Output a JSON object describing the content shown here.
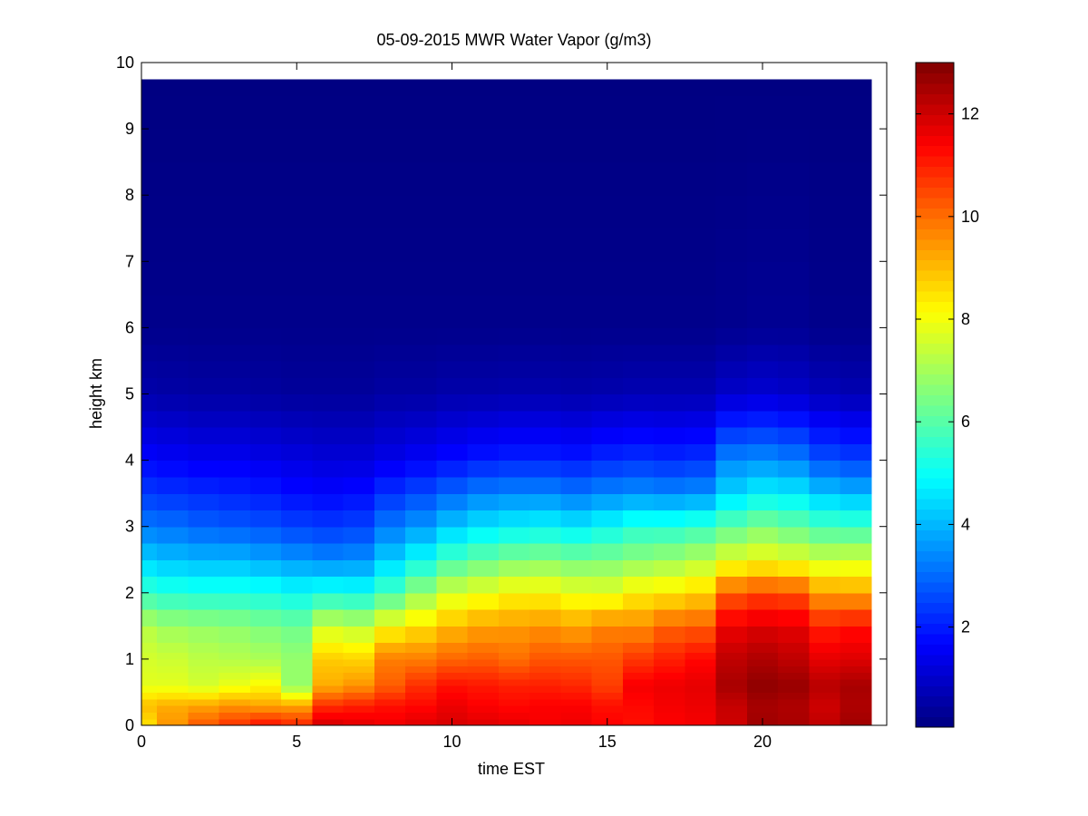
{
  "chart_data": {
    "type": "heatmap",
    "title": "05-09-2015 MWR Water Vapor (g/m3)",
    "xlabel": "time EST",
    "ylabel": "height km",
    "xlim": [
      0,
      24
    ],
    "ylim": [
      0,
      10
    ],
    "x_ticks": [
      0,
      5,
      10,
      15,
      20
    ],
    "y_ticks": [
      0,
      1,
      2,
      3,
      4,
      5,
      6,
      7,
      8,
      9,
      10
    ],
    "colorbar": {
      "colormap": "jet",
      "range": [
        0.05,
        13
      ],
      "ticks": [
        2,
        4,
        6,
        8,
        10,
        12
      ]
    },
    "x_values": [
      0,
      1,
      2,
      3,
      4,
      5,
      6,
      7,
      8,
      9,
      10,
      11,
      12,
      13,
      14,
      15,
      16,
      17,
      18,
      19,
      20,
      21,
      22,
      23
    ],
    "height_levels_km": [
      0,
      0.1,
      0.2,
      0.3,
      0.4,
      0.5,
      0.6,
      0.7,
      0.8,
      0.9,
      1.0,
      1.1,
      1.25,
      1.5,
      1.75,
      2.0,
      2.25,
      2.5,
      2.75,
      3.0,
      3.25,
      3.5,
      3.75,
      4.0,
      4.25,
      4.5,
      4.75,
      5.0,
      5.25,
      5.5,
      5.75,
      6.0,
      6.5,
      7.0,
      7.5,
      8.0,
      8.5,
      9.0,
      9.5
    ],
    "y_max_km": 9.75,
    "profile_heights_km": [
      0,
      0.3,
      0.6,
      1.0,
      1.5,
      2.0,
      2.5,
      3.0,
      3.5,
      4.0,
      5.0,
      6.0,
      9.75
    ],
    "profiles_g_m3": [
      [
        8.5,
        9.0,
        7.8,
        7.6,
        7.2,
        5.6,
        4.3,
        3.2,
        2.4,
        1.7,
        0.6,
        0.2,
        0.08
      ],
      [
        9.5,
        9.2,
        7.8,
        7.5,
        6.9,
        5.4,
        4.1,
        3.1,
        2.3,
        1.6,
        0.55,
        0.2,
        0.08
      ],
      [
        10.3,
        9.3,
        7.6,
        7.3,
        6.8,
        5.3,
        4.0,
        2.9,
        2.2,
        1.5,
        0.5,
        0.2,
        0.08
      ],
      [
        10.8,
        9.5,
        7.9,
        7.2,
        6.7,
        5.3,
        4.0,
        2.8,
        2.1,
        1.5,
        0.5,
        0.2,
        0.08
      ],
      [
        11.3,
        9.3,
        8.2,
        7.1,
        6.5,
        5.2,
        3.8,
        2.7,
        2.0,
        1.4,
        0.45,
        0.2,
        0.08
      ],
      [
        11.0,
        9.3,
        6.8,
        6.8,
        6.3,
        5.0,
        3.6,
        2.5,
        1.8,
        1.3,
        0.4,
        0.2,
        0.08
      ],
      [
        12.0,
        10.8,
        9.2,
        8.8,
        7.5,
        5.2,
        3.4,
        2.4,
        1.7,
        1.2,
        0.4,
        0.2,
        0.08
      ],
      [
        11.8,
        11.0,
        9.5,
        8.7,
        7.3,
        5.1,
        3.5,
        2.5,
        1.8,
        1.2,
        0.4,
        0.2,
        0.08
      ],
      [
        11.6,
        11.2,
        10.2,
        9.8,
        8.1,
        5.8,
        4.3,
        3.2,
        2.3,
        1.4,
        0.5,
        0.2,
        0.08
      ],
      [
        11.8,
        11.3,
        10.8,
        9.8,
        8.5,
        6.8,
        5.0,
        3.6,
        2.6,
        1.6,
        0.5,
        0.2,
        0.08
      ],
      [
        11.9,
        11.6,
        11.2,
        10.1,
        9.0,
        7.6,
        5.8,
        4.2,
        3.0,
        1.8,
        0.6,
        0.2,
        0.08
      ],
      [
        11.8,
        11.4,
        11.1,
        10.2,
        9.3,
        7.9,
        6.2,
        4.6,
        3.3,
        2.0,
        0.6,
        0.2,
        0.08
      ],
      [
        11.7,
        11.3,
        11.0,
        10.0,
        9.4,
        8.2,
        6.5,
        4.8,
        3.4,
        2.1,
        0.65,
        0.2,
        0.08
      ],
      [
        11.5,
        11.4,
        11.0,
        10.3,
        9.5,
        8.2,
        6.6,
        4.9,
        3.4,
        2.1,
        0.65,
        0.2,
        0.08
      ],
      [
        11.6,
        11.4,
        10.9,
        10.3,
        9.3,
        7.9,
        6.4,
        4.7,
        3.2,
        2.0,
        0.6,
        0.2,
        0.08
      ],
      [
        11.4,
        11.2,
        10.6,
        10.3,
        9.7,
        7.8,
        6.5,
        5.0,
        3.4,
        2.2,
        0.65,
        0.2,
        0.08
      ],
      [
        11.2,
        11.3,
        11.5,
        10.7,
        9.6,
        8.3,
        6.7,
        5.4,
        3.5,
        2.3,
        0.7,
        0.2,
        0.08
      ],
      [
        11.4,
        11.5,
        11.6,
        11.0,
        10.1,
        8.4,
        6.9,
        5.4,
        3.4,
        2.2,
        0.7,
        0.2,
        0.08
      ],
      [
        11.5,
        11.6,
        11.7,
        11.3,
        10.2,
        8.7,
        7.2,
        5.6,
        3.5,
        2.3,
        0.7,
        0.2,
        0.08
      ],
      [
        12.0,
        12.1,
        12.5,
        12.2,
        11.6,
        10.2,
        7.8,
        6.1,
        4.4,
        3.4,
        1.0,
        0.25,
        0.08
      ],
      [
        12.6,
        12.5,
        12.8,
        12.4,
        11.8,
        10.5,
        8.0,
        6.5,
        4.8,
        3.5,
        1.1,
        0.3,
        0.08
      ],
      [
        12.5,
        12.4,
        12.7,
        12.2,
        11.7,
        10.4,
        7.8,
        6.2,
        4.7,
        3.3,
        1.0,
        0.3,
        0.08
      ],
      [
        12.2,
        12.0,
        12.3,
        11.7,
        11.0,
        9.4,
        7.5,
        5.8,
        4.2,
        2.7,
        0.8,
        0.2,
        0.08
      ],
      [
        12.6,
        12.4,
        12.5,
        11.8,
        11.2,
        9.3,
        7.6,
        5.7,
        4.0,
        2.5,
        0.7,
        0.2,
        0.08
      ]
    ]
  }
}
